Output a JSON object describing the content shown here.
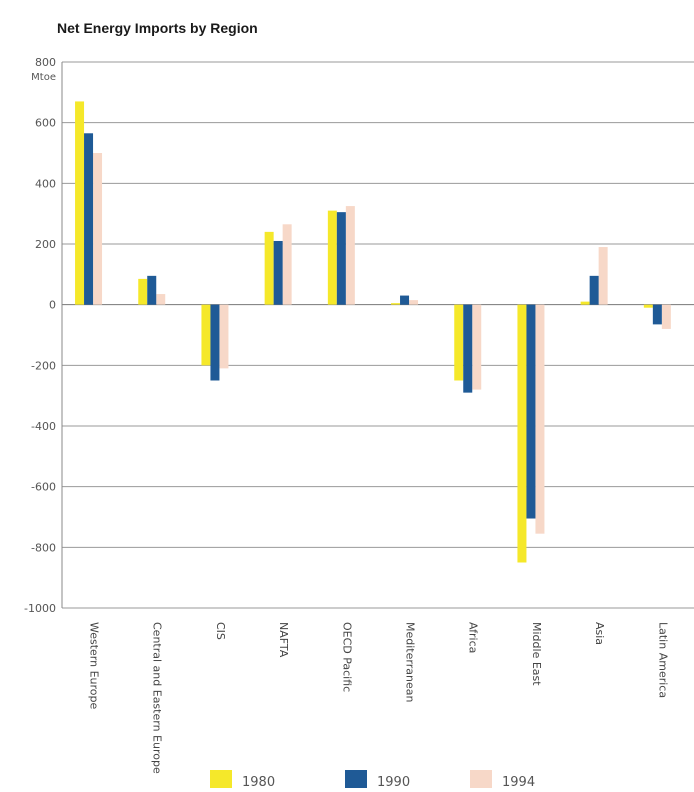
{
  "chart_data": {
    "type": "bar",
    "title": "Net Energy Imports by Region",
    "unit": "Mtoe",
    "categories": [
      "Western Europe",
      "Central and Eastern Europe",
      "CIS",
      "NAFTA",
      "OECD Pacific",
      "Mediterranean",
      "Africa",
      "Middle East",
      "Asia",
      "Latin America"
    ],
    "series": [
      {
        "name": "1980",
        "color": "#f5e82a",
        "values": [
          670,
          85,
          -200,
          240,
          310,
          5,
          -250,
          -850,
          10,
          -10
        ]
      },
      {
        "name": "1990",
        "color": "#1f5a96",
        "values": [
          565,
          95,
          -250,
          210,
          305,
          30,
          -290,
          -705,
          95,
          -65
        ]
      },
      {
        "name": "1994",
        "color": "#f7d8c8",
        "values": [
          500,
          35,
          -210,
          265,
          325,
          15,
          -280,
          -755,
          190,
          -80
        ]
      }
    ],
    "ylim": [
      -1000,
      800
    ],
    "yticks": [
      800,
      600,
      400,
      200,
      0,
      -200,
      -400,
      -600,
      -800,
      -1000
    ],
    "grid": true,
    "legend_position": "bottom"
  }
}
